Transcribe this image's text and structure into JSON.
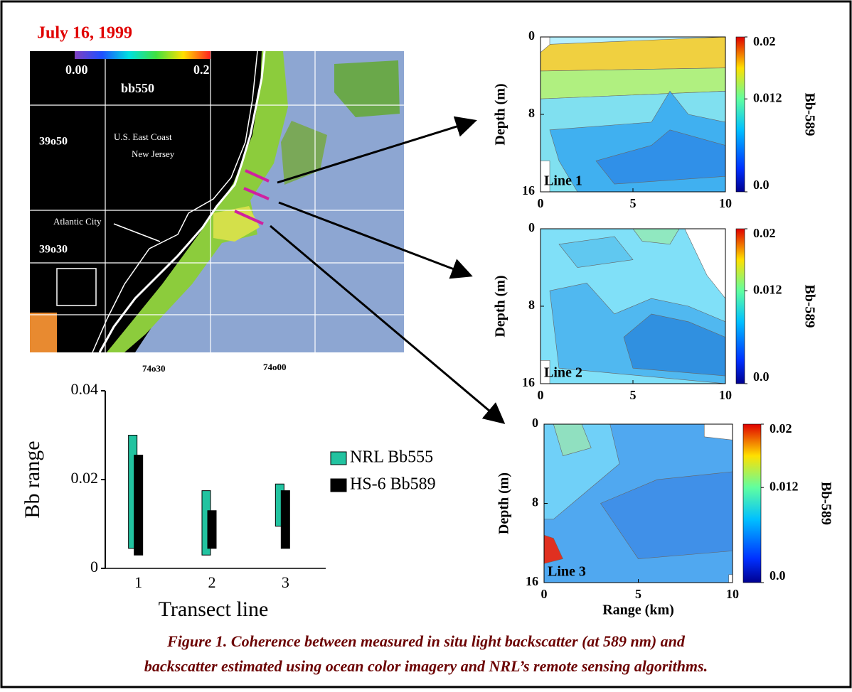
{
  "map": {
    "title": "July 16, 1999",
    "cbar_min": "0.00",
    "cbar_max": "0.2",
    "cbar_label": "bb550",
    "labels": [
      "U.S. East Coast",
      "New Jersey",
      "Atlantic City"
    ],
    "lat_labels": [
      "39o50",
      "39o30"
    ],
    "lon_labels": [
      "74o30",
      "74o00"
    ]
  },
  "chart_data": {
    "type": "range-bar",
    "ylabel": "Bb range",
    "xlabel": "Transect line",
    "categories": [
      "1",
      "2",
      "3"
    ],
    "ylim": [
      0,
      0.04
    ],
    "yticks": [
      0,
      0.02,
      0.04
    ],
    "series": [
      {
        "name": "NRL Bb555",
        "color": "#22c3a0",
        "low": [
          0.0045,
          0.003,
          0.0095
        ],
        "high": [
          0.03,
          0.0175,
          0.019
        ]
      },
      {
        "name": "HS-6 Bb589",
        "color": "#000000",
        "low": [
          0.003,
          0.0045,
          0.0045
        ],
        "high": [
          0.0255,
          0.013,
          0.0175
        ]
      }
    ]
  },
  "panels": [
    {
      "label": "Line 1",
      "ylabel": "Depth (m)",
      "ylim": [
        0,
        16
      ],
      "yticks": [
        0,
        8,
        16
      ],
      "xlim": [
        0,
        10
      ],
      "xticks": [
        0,
        5,
        10
      ],
      "clim": [
        0,
        0.02
      ],
      "cbar_ticks": [
        0.02,
        0.012,
        {
          "value": 0,
          "label": "0.0"
        }
      ],
      "cbar_label": "Bb-589"
    },
    {
      "label": "Line 2",
      "ylabel": "Depth (m)",
      "ylim": [
        0,
        16
      ],
      "yticks": [
        0,
        8,
        16
      ],
      "xlim": [
        0,
        10
      ],
      "xticks": [
        0,
        5,
        10
      ],
      "clim": [
        0,
        0.02
      ],
      "cbar_ticks": [
        0.02,
        0.012,
        {
          "value": 0,
          "label": "0.0"
        }
      ],
      "cbar_label": "Bb-589"
    },
    {
      "label": "Line 3",
      "ylabel": "Depth (m)",
      "ylim": [
        0,
        16
      ],
      "yticks": [
        0,
        8,
        16
      ],
      "xlim": [
        0,
        10
      ],
      "xticks": [
        0,
        5,
        10
      ],
      "clim": [
        0,
        0.02
      ],
      "cbar_ticks": [
        0.02,
        0.012,
        {
          "value": 0,
          "label": "0.0"
        }
      ],
      "cbar_label": "Bb-589",
      "xlabel": "Range (km)"
    }
  ],
  "caption": [
    "Figure 1. Coherence between measured in situ light backscatter (at 589 nm) and",
    "backscatter estimated using ocean color imagery and NRL’s remote sensing algorithms."
  ]
}
